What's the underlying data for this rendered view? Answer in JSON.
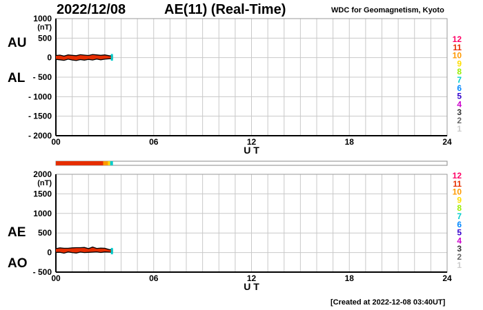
{
  "header": {
    "date": "2022/12/08",
    "title": "AE(11) (Real-Time)",
    "source": "WDC for Geomagnetism, Kyoto"
  },
  "footer": {
    "created": "[Created at 2022-12-08 03:40UT]"
  },
  "colors": {
    "axis": "#000000",
    "grid": "#c8c8c8",
    "stations": {
      "12": "#ff0066",
      "11": "#e62e00",
      "10": "#ff9900",
      "9": "#ffdd00",
      "8": "#99ee00",
      "7": "#00cccc",
      "6": "#0088ff",
      "5": "#3300cc",
      "4": "#cc00cc",
      "3": "#333333",
      "2": "#666666",
      "1": "#cccccc"
    }
  },
  "station_key": [
    "12",
    "11",
    "10",
    "9",
    "8",
    "7",
    "6",
    "5",
    "4",
    "3",
    "2",
    "1"
  ],
  "availability_bar": {
    "segments": [
      {
        "from": 0,
        "to": 2.9,
        "station": "11"
      },
      {
        "from": 2.9,
        "to": 3.2,
        "station": "10"
      },
      {
        "from": 3.2,
        "to": 3.33,
        "station": "9"
      },
      {
        "from": 3.33,
        "to": 3.5,
        "station": "7"
      }
    ]
  },
  "chart_data": [
    {
      "type": "line",
      "panel": "AU/AL",
      "series_labels": [
        "AU",
        "AL"
      ],
      "unit": "(nT)",
      "xlabel": "U T",
      "xlim": [
        0,
        24
      ],
      "xticks": [
        0,
        6,
        12,
        18,
        24
      ],
      "xtick_labels": [
        "00",
        "06",
        "12",
        "18",
        "24"
      ],
      "ylim": [
        -2000,
        1000
      ],
      "yticks": [
        1000,
        500,
        0,
        -500,
        -1000,
        -1500,
        -2000
      ],
      "ytick_labels": [
        "1000",
        "500",
        "0",
        "- 500",
        "- 1000",
        "- 1500",
        "- 2000"
      ],
      "grid": true,
      "series": [
        {
          "name": "AU",
          "color": "#e62e00",
          "x": [
            0,
            0.25,
            0.5,
            0.75,
            1,
            1.25,
            1.5,
            1.75,
            2,
            2.25,
            2.5,
            2.75,
            3,
            3.25,
            3.5
          ],
          "y": [
            55,
            65,
            40,
            70,
            60,
            50,
            75,
            65,
            55,
            80,
            70,
            60,
            70,
            50,
            40
          ]
        },
        {
          "name": "AL",
          "color": "#e62e00",
          "x": [
            0,
            0.25,
            0.5,
            0.75,
            1,
            1.25,
            1.5,
            1.75,
            2,
            2.25,
            2.5,
            2.75,
            3,
            3.25,
            3.5
          ],
          "y": [
            -45,
            -55,
            -70,
            -40,
            -60,
            -75,
            -50,
            -65,
            -45,
            -60,
            -35,
            -55,
            -40,
            -30,
            -25
          ]
        }
      ]
    },
    {
      "type": "line",
      "panel": "AE/AO",
      "series_labels": [
        "AE",
        "AO"
      ],
      "unit": "(nT)",
      "xlabel": "U T",
      "xlim": [
        0,
        24
      ],
      "xticks": [
        0,
        6,
        12,
        18,
        24
      ],
      "xtick_labels": [
        "00",
        "06",
        "12",
        "18",
        "24"
      ],
      "ylim": [
        -500,
        2000
      ],
      "yticks": [
        2000,
        1500,
        1000,
        500,
        0,
        -500
      ],
      "ytick_labels": [
        "2000",
        "1500",
        "1000",
        "500",
        "0",
        "- 500"
      ],
      "grid": true,
      "series": [
        {
          "name": "AE",
          "color": "#e62e00",
          "x": [
            0,
            0.25,
            0.5,
            0.75,
            1,
            1.25,
            1.5,
            1.75,
            2,
            2.25,
            2.5,
            2.75,
            3,
            3.25,
            3.5
          ],
          "y": [
            100,
            120,
            110,
            110,
            120,
            125,
            125,
            130,
            100,
            140,
            105,
            115,
            110,
            80,
            65
          ]
        },
        {
          "name": "AO",
          "color": "#e62e00",
          "x": [
            0,
            0.25,
            0.5,
            0.75,
            1,
            1.25,
            1.5,
            1.75,
            2,
            2.25,
            2.5,
            2.75,
            3,
            3.25,
            3.5
          ],
          "y": [
            5,
            5,
            -15,
            15,
            0,
            -12,
            12,
            0,
            5,
            10,
            18,
            2,
            15,
            10,
            8
          ]
        }
      ]
    }
  ]
}
